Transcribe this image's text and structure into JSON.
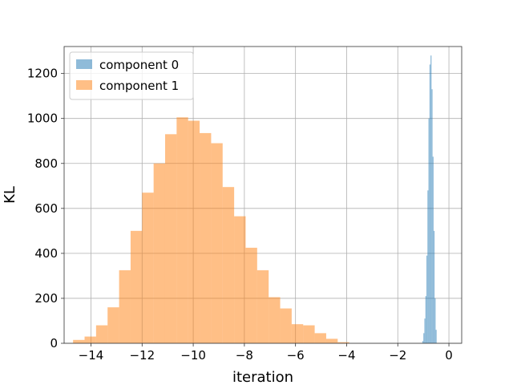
{
  "chart_data": {
    "type": "bar",
    "xlabel": "iteration",
    "ylabel": "KL",
    "xlim": [
      -15.05,
      0.5
    ],
    "ylim": [
      0,
      1320
    ],
    "xticks": [
      -14,
      -12,
      -10,
      -8,
      -6,
      -4,
      -2,
      0
    ],
    "xtick_labels": [
      "−14",
      "−12",
      "−10",
      "−8",
      "−6",
      "−4",
      "−2",
      "0"
    ],
    "yticks": [
      0,
      200,
      400,
      600,
      800,
      1000,
      1200
    ],
    "grid": true,
    "legend_position": "top-left",
    "series": [
      {
        "name": "component 0",
        "color": "#1f77b4",
        "alpha": 0.5,
        "bin_edges": [
          -1.04,
          -1.0,
          -0.96,
          -0.92,
          -0.88,
          -0.84,
          -0.8,
          -0.76,
          -0.72,
          -0.68,
          -0.64,
          -0.6,
          -0.56,
          -0.52,
          -0.48
        ],
        "values": [
          10,
          45,
          110,
          210,
          390,
          680,
          1000,
          1240,
          1280,
          1130,
          830,
          500,
          200,
          60
        ]
      },
      {
        "name": "component 1",
        "color": "#ff7f0e",
        "alpha": 0.5,
        "bin_edges": [
          -14.7,
          -14.25,
          -13.8,
          -13.35,
          -12.9,
          -12.45,
          -12.0,
          -11.55,
          -11.1,
          -10.65,
          -10.2,
          -9.75,
          -9.3,
          -8.85,
          -8.4,
          -7.95,
          -7.5,
          -7.05,
          -6.6,
          -6.15,
          -5.7,
          -5.25,
          -4.8,
          -4.35,
          -3.9
        ],
        "values": [
          15,
          30,
          80,
          160,
          325,
          500,
          670,
          800,
          930,
          1005,
          990,
          935,
          890,
          695,
          565,
          425,
          325,
          205,
          155,
          85,
          80,
          45,
          20,
          5
        ]
      }
    ]
  }
}
